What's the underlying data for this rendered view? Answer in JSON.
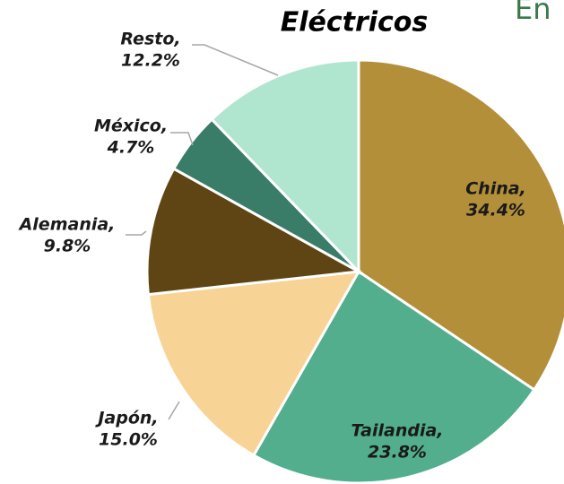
{
  "chart_data": {
    "type": "pie",
    "title": "Eléctricos",
    "annotation": "En",
    "categories": [
      "China,",
      "Tailandia,",
      "Japón,",
      "Alemania,",
      "México,",
      "Resto,"
    ],
    "values": [
      34.4,
      23.8,
      15.0,
      9.8,
      4.7,
      12.2
    ],
    "value_labels": [
      "34.4%",
      "23.8%",
      "15.0%",
      "9.8%",
      "4.7%",
      "12.2%"
    ],
    "colors": [
      "#b38f3a",
      "#52ae8d",
      "#f7d396",
      "#5f4514",
      "#397c68",
      "#b0e6d0"
    ]
  }
}
